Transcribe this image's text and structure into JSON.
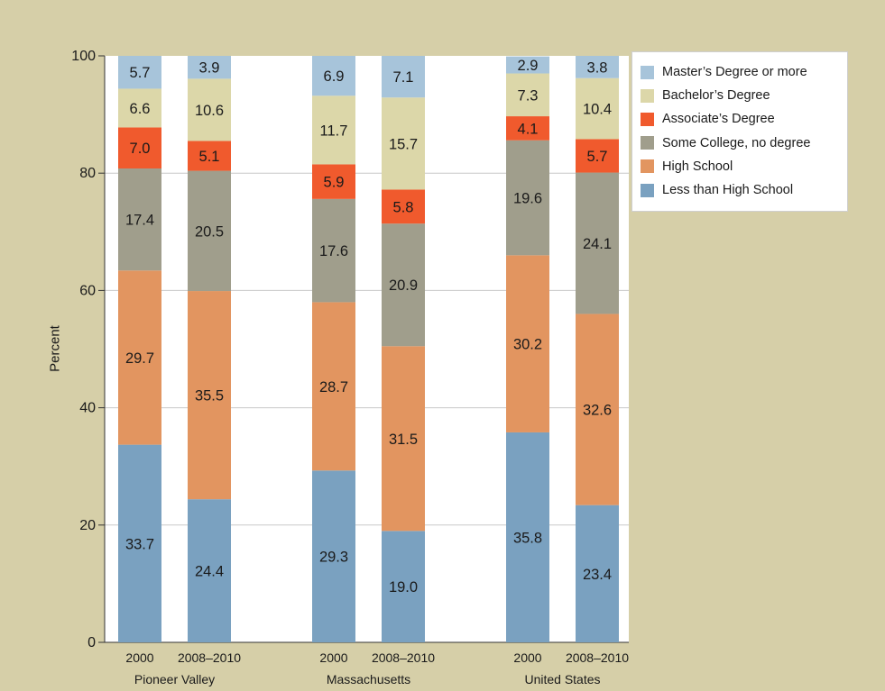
{
  "chart_data": {
    "type": "bar",
    "stacked": true,
    "ylabel": "Percent",
    "ylim": [
      0,
      100
    ],
    "yticks": [
      0,
      20,
      40,
      60,
      80,
      100
    ],
    "grid": true,
    "legend_position": "top-right",
    "groups": [
      {
        "name": "Pioneer Valley",
        "categories": [
          "2000",
          "2008–2010"
        ]
      },
      {
        "name": "Massachusetts",
        "categories": [
          "2000",
          "2008–2010"
        ]
      },
      {
        "name": "United States",
        "categories": [
          "2000",
          "2008–2010"
        ]
      }
    ],
    "series": [
      {
        "name": "Less than High School",
        "color": "#7aa1c0",
        "values": [
          33.7,
          24.4,
          29.3,
          19.0,
          35.8,
          23.4
        ],
        "labels": [
          "33.7",
          "24.4",
          "29.3",
          "19.0",
          "35.8",
          "23.4"
        ]
      },
      {
        "name": "High School",
        "color": "#e29560",
        "values": [
          29.7,
          35.5,
          28.7,
          31.5,
          30.2,
          32.6
        ],
        "labels": [
          "29.7",
          "35.5",
          "28.7",
          "31.5",
          "30.2",
          "32.6"
        ]
      },
      {
        "name": "Some College, no degree",
        "color": "#a09e8c",
        "values": [
          17.4,
          20.5,
          17.6,
          20.9,
          19.6,
          24.1
        ],
        "labels": [
          "17.4",
          "20.5",
          "17.6",
          "20.9",
          "19.6",
          "24.1"
        ]
      },
      {
        "name": "Associate’s Degree",
        "color": "#f05a2d",
        "values": [
          7.0,
          5.1,
          5.9,
          5.8,
          4.1,
          5.7
        ],
        "labels": [
          "7.0",
          "5.1",
          "5.9",
          "5.8",
          "4.1",
          "5.7"
        ]
      },
      {
        "name": "Bachelor’s Degree",
        "color": "#dcd7a9",
        "values": [
          6.6,
          10.6,
          11.7,
          15.7,
          7.3,
          10.4
        ],
        "labels": [
          "6.6",
          "10.6",
          "11.7",
          "15.7",
          "7.3",
          "10.4"
        ]
      },
      {
        "name": "Master’s Degree or more",
        "color": "#a7c4da",
        "values": [
          5.7,
          3.9,
          6.9,
          7.1,
          2.9,
          3.8
        ],
        "labels": [
          "5.7",
          "3.9",
          "6.9",
          "7.1",
          "2.9",
          "3.8"
        ]
      }
    ],
    "legend_order": [
      "Master’s Degree or more",
      "Bachelor’s Degree",
      "Associate’s Degree",
      "Some College, no degree",
      "High School",
      "Less than High School"
    ],
    "plot_background": "#ffffff",
    "page_background": "#d6cfa8"
  }
}
